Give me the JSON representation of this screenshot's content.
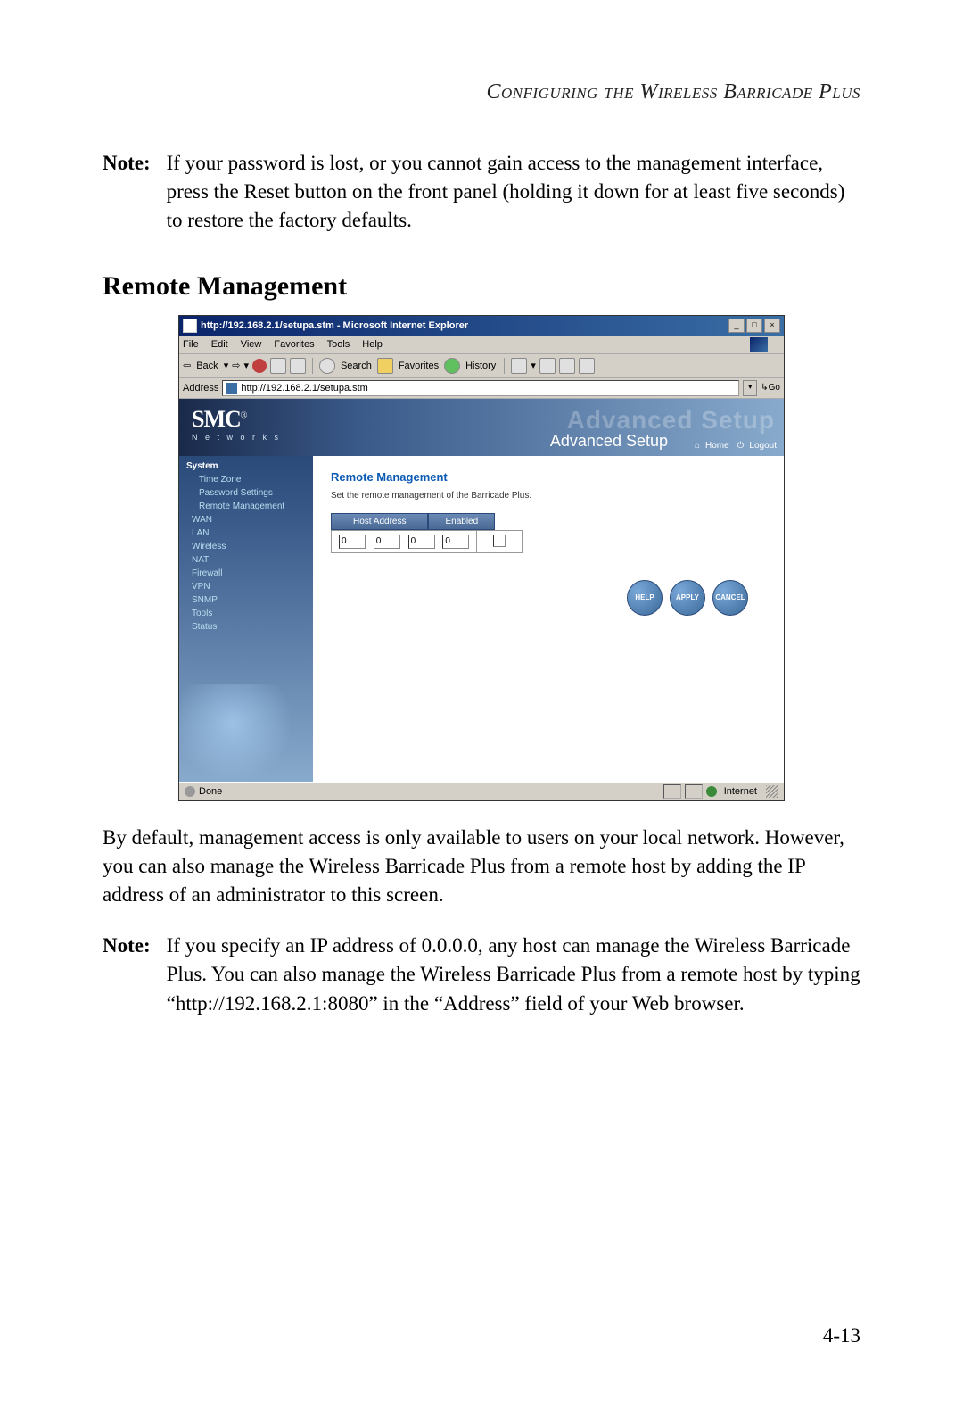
{
  "page_header": "Configuring the Wireless Barricade Plus",
  "note1_label": "Note:",
  "note1_text": "If your password is lost, or you cannot gain access to the management interface, press the Reset button on the front panel (holding it down for at least five seconds) to restore the factory defaults.",
  "section_heading": "Remote Management",
  "body_para": "By default, management access is only available to users on your local network. However, you can also manage the Wireless Barricade Plus from a remote host by adding the IP address of an administrator to this screen.",
  "note2_label": "Note:",
  "note2_text": "If you specify an IP address of 0.0.0.0, any host can manage the Wireless Barricade Plus. You can also manage the Wireless Barricade Plus from a remote host by typing “http://192.168.2.1:8080” in the “Address” field of your Web browser.",
  "page_number": "4-13",
  "screenshot": {
    "titlebar": "http://192.168.2.1/setupa.stm - Microsoft Internet Explorer",
    "win_min": "_",
    "win_max": "□",
    "win_close": "×",
    "menu": {
      "file": "File",
      "edit": "Edit",
      "view": "View",
      "favorites": "Favorites",
      "tools": "Tools",
      "help": "Help"
    },
    "toolbar": {
      "back": "Back",
      "search": "Search",
      "favorites": "Favorites",
      "history": "History"
    },
    "address_label": "Address",
    "address_value": "http://192.168.2.1/setupa.stm",
    "go_label": "Go",
    "logo": "SMC",
    "logo_reg": "®",
    "logo_sub": "N e t w o r k s",
    "adv_bg": "Advanced Setup",
    "adv_fg": "Advanced Setup",
    "home_link": "Home",
    "logout_link": "Logout",
    "sidebar": {
      "system": "System",
      "timezone": "Time Zone",
      "password": "Password Settings",
      "remote": "Remote Management",
      "wan": "WAN",
      "lan": "LAN",
      "wireless": "Wireless",
      "nat": "NAT",
      "firewall": "Firewall",
      "vpn": "VPN",
      "snmp": "SNMP",
      "tools": "Tools",
      "status": "Status"
    },
    "panel": {
      "title": "Remote Management",
      "desc": "Set the remote management of the Barricade Plus.",
      "host_header": "Host Address",
      "enabled_header": "Enabled",
      "octet": "0",
      "help": "HELP",
      "apply": "APPLY",
      "cancel": "CANCEL"
    },
    "status_done": "Done",
    "status_zone": "Internet"
  }
}
